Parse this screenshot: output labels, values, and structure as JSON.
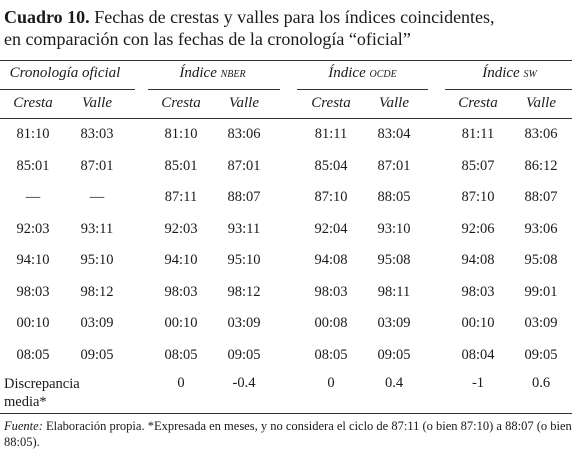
{
  "title": {
    "label": "Cuadro 10.",
    "lines": [
      "Fechas de crestas y valles para los índices coincidentes,",
      "en comparación con las fechas de la cronología “oficial”"
    ]
  },
  "table": {
    "groups": [
      {
        "name": "Cronología oficial"
      },
      {
        "name": "Índice",
        "suffix": "NBER"
      },
      {
        "name": "Índice",
        "suffix": "OCDE"
      },
      {
        "name": "Índice",
        "suffix": "SW"
      }
    ],
    "subheaders": [
      "Cresta",
      "Valle",
      "Cresta",
      "Valle",
      "Cresta",
      "Valle",
      "Cresta",
      "Valle"
    ],
    "rows": [
      [
        "81:10",
        "83:03",
        "81:10",
        "83:06",
        "81:11",
        "83:04",
        "81:11",
        "83:06"
      ],
      [
        "85:01",
        "87:01",
        "85:01",
        "87:01",
        "85:04",
        "87:01",
        "85:07",
        "86:12"
      ],
      [
        "—",
        "—",
        "87:11",
        "88:07",
        "87:10",
        "88:05",
        "87:10",
        "88:07"
      ],
      [
        "92:03",
        "93:11",
        "92:03",
        "93:11",
        "92:04",
        "93:10",
        "92:06",
        "93:06"
      ],
      [
        "94:10",
        "95:10",
        "94:10",
        "95:10",
        "94:08",
        "95:08",
        "94:08",
        "95:08"
      ],
      [
        "98:03",
        "98:12",
        "98:03",
        "98:12",
        "98:03",
        "98:11",
        "98:03",
        "99:01"
      ],
      [
        "00:10",
        "03:09",
        "00:10",
        "03:09",
        "00:08",
        "03:09",
        "00:10",
        "03:09"
      ],
      [
        "08:05",
        "09:05",
        "08:05",
        "09:05",
        "08:05",
        "09:05",
        "08:04",
        "09:05"
      ]
    ],
    "discrepancy": {
      "label": "Discrepancia media*",
      "values": [
        0,
        -0.4,
        0,
        0.4,
        -1,
        0.6
      ]
    }
  },
  "footnote": {
    "label": "Fuente:",
    "text": "Elaboración propia. *Expresada en meses, y no considera el ciclo de 87:11 (o bien 87:10) a 88:07 (o bien 88:05)."
  }
}
